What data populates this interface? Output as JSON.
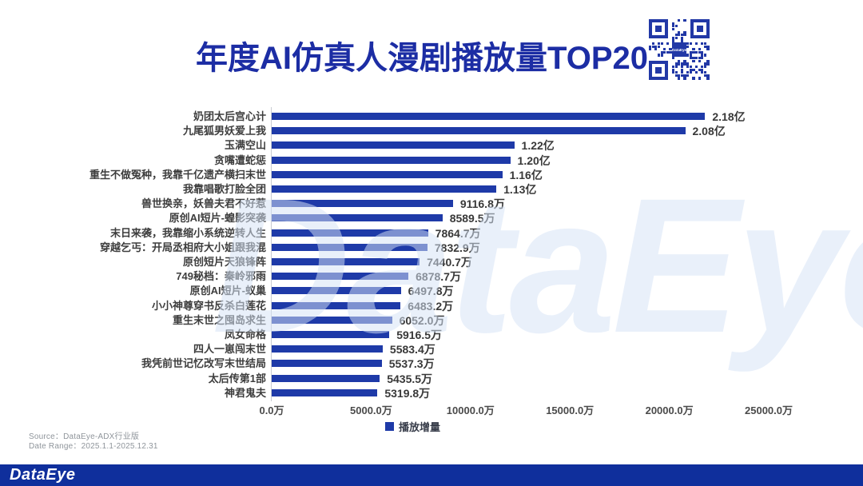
{
  "header": {
    "title": "年度AI仿真人漫剧播放量TOP20",
    "qr_code_label": "DataEye"
  },
  "chart_data": {
    "type": "bar",
    "orientation": "horizontal",
    "title": "年度AI仿真人漫剧播放量TOP20",
    "legend_position": "bottom",
    "legend": [
      {
        "label": "播放增量",
        "color": "#1e3aa8"
      }
    ],
    "unit": "万",
    "xlim": [
      0,
      25000
    ],
    "grid": false,
    "x_ticks": [
      {
        "value": 0,
        "label": "0.0万"
      },
      {
        "value": 5000,
        "label": "5000.0万"
      },
      {
        "value": 10000,
        "label": "10000.0万"
      },
      {
        "value": 15000,
        "label": "15000.0万"
      },
      {
        "value": 20000,
        "label": "20000.0万"
      },
      {
        "value": 25000,
        "label": "25000.0万"
      }
    ],
    "bars": [
      {
        "category": "奶团太后宫心计",
        "value": 21800,
        "label": "2.18亿"
      },
      {
        "category": "九尾狐男妖爱上我",
        "value": 20800,
        "label": "2.08亿"
      },
      {
        "category": "玉满空山",
        "value": 12200,
        "label": "1.22亿"
      },
      {
        "category": "贪嘴遭蛇惩",
        "value": 12000,
        "label": "1.20亿"
      },
      {
        "category": "重生不做冤种，我靠千亿遗产横扫末世",
        "value": 11600,
        "label": "1.16亿"
      },
      {
        "category": "我靠唱歌打脸全团",
        "value": 11300,
        "label": "1.13亿"
      },
      {
        "category": "兽世换亲，妖兽夫君不好惹",
        "value": 9116.8,
        "label": "9116.8万"
      },
      {
        "category": "原创AI短片-蝗影突袭",
        "value": 8589.5,
        "label": "8589.5万"
      },
      {
        "category": "末日来袭，我靠缩小系统逆转人生",
        "value": 7864.7,
        "label": "7864.7万"
      },
      {
        "category": "穿越乞丐：开局丞相府大小姐跟我混",
        "value": 7832.9,
        "label": "7832.9万"
      },
      {
        "category": "原创短片天狼锋阵",
        "value": 7440.7,
        "label": "7440.7万"
      },
      {
        "category": "749秘档：秦岭邪雨",
        "value": 6878.7,
        "label": "6878.7万"
      },
      {
        "category": "原创AI短片-蚁巢",
        "value": 6497.8,
        "label": "6497.8万"
      },
      {
        "category": "小小神尊穿书反杀白莲花",
        "value": 6483.2,
        "label": "6483.2万"
      },
      {
        "category": "重生末世之囤岛求生",
        "value": 6052.0,
        "label": "6052.0万"
      },
      {
        "category": "凤女命格",
        "value": 5916.5,
        "label": "5916.5万"
      },
      {
        "category": "四人一崽闯末世",
        "value": 5583.4,
        "label": "5583.4万"
      },
      {
        "category": "我凭前世记忆改写末世结局",
        "value": 5537.3,
        "label": "5537.3万"
      },
      {
        "category": "太后传第1部",
        "value": 5435.5,
        "label": "5435.5万"
      },
      {
        "category": "神君鬼夫",
        "value": 5319.8,
        "label": "5319.8万"
      }
    ]
  },
  "watermark": "DataEye",
  "footer": {
    "source": "Source：DataEye-ADX行业版",
    "date_range": "Date Range：2025.1.1-2025.12.31",
    "brand_logo": "DataEye"
  },
  "colors": {
    "bar": "#1e3aa8",
    "title": "#1c2da4",
    "qr": "#2238a6",
    "footer_bar": "#0f2f9c",
    "watermark": "rgba(212,226,246,0.52)"
  }
}
